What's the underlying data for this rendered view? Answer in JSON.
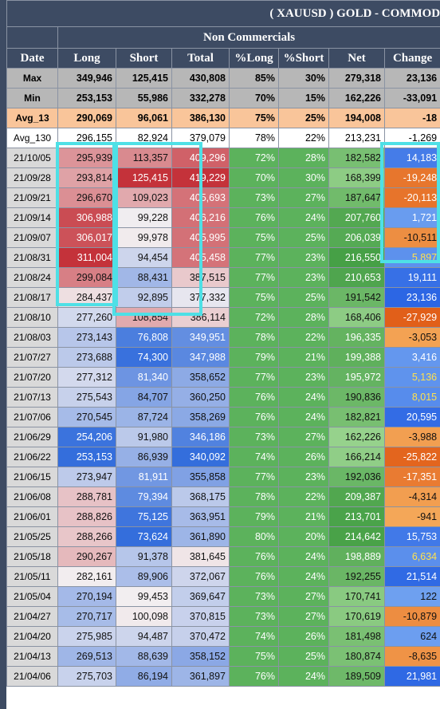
{
  "title": "( XAUUSD ) GOLD - COMMOD",
  "table": {
    "group_header": "Non Commercials",
    "columns": [
      "Date",
      "Long",
      "Short",
      "Total",
      "%Long",
      "%Short",
      "Net",
      "Change"
    ],
    "rows": [
      [
        "Max",
        "349,946",
        "125,415",
        "430,808",
        "85%",
        "30%",
        "279,318",
        "23,136"
      ],
      [
        "Min",
        "253,153",
        "55,986",
        "332,278",
        "70%",
        "15%",
        "162,226",
        "-33,091"
      ],
      [
        "Avg_13",
        "290,069",
        "96,061",
        "386,130",
        "75%",
        "25%",
        "194,008",
        "-18"
      ],
      [
        "Avg_130",
        "296,155",
        "82,924",
        "379,079",
        "78%",
        "22%",
        "213,231",
        "-1,269"
      ],
      [
        "21/10/05",
        "295,939",
        "113,357",
        "409,296",
        "72%",
        "28%",
        "182,582",
        "14,183"
      ],
      [
        "21/09/28",
        "293,814",
        "125,415",
        "419,229",
        "70%",
        "30%",
        "168,399",
        "-19,248"
      ],
      [
        "21/09/21",
        "296,670",
        "109,023",
        "405,693",
        "73%",
        "27%",
        "187,647",
        "-20,113"
      ],
      [
        "21/09/14",
        "306,988",
        "99,228",
        "406,216",
        "76%",
        "24%",
        "207,760",
        "1,721"
      ],
      [
        "21/09/07",
        "306,017",
        "99,978",
        "405,995",
        "75%",
        "25%",
        "206,039",
        "-10,511"
      ],
      [
        "21/08/31",
        "311,004",
        "94,454",
        "405,458",
        "77%",
        "23%",
        "216,550",
        "5,897"
      ],
      [
        "21/08/24",
        "299,084",
        "88,431",
        "387,515",
        "77%",
        "23%",
        "210,653",
        "19,111"
      ],
      [
        "21/08/17",
        "284,437",
        "92,895",
        "377,332",
        "75%",
        "25%",
        "191,542",
        "23,136"
      ],
      [
        "21/08/10",
        "277,260",
        "108,854",
        "386,114",
        "72%",
        "28%",
        "168,406",
        "-27,929"
      ],
      [
        "21/08/03",
        "273,143",
        "76,808",
        "349,951",
        "78%",
        "22%",
        "196,335",
        "-3,053"
      ],
      [
        "21/07/27",
        "273,688",
        "74,300",
        "347,988",
        "79%",
        "21%",
        "199,388",
        "3,416"
      ],
      [
        "21/07/20",
        "277,312",
        "81,340",
        "358,652",
        "77%",
        "23%",
        "195,972",
        "5,136"
      ],
      [
        "21/07/13",
        "275,543",
        "84,707",
        "360,250",
        "76%",
        "24%",
        "190,836",
        "8,015"
      ],
      [
        "21/07/06",
        "270,545",
        "87,724",
        "358,269",
        "76%",
        "24%",
        "182,821",
        "20,595"
      ],
      [
        "21/06/29",
        "254,206",
        "91,980",
        "346,186",
        "73%",
        "27%",
        "162,226",
        "-3,988"
      ],
      [
        "21/06/22",
        "253,153",
        "86,939",
        "340,092",
        "74%",
        "26%",
        "166,214",
        "-25,822"
      ],
      [
        "21/06/15",
        "273,947",
        "81,911",
        "355,858",
        "77%",
        "23%",
        "192,036",
        "-17,351"
      ],
      [
        "21/06/08",
        "288,781",
        "79,394",
        "368,175",
        "78%",
        "22%",
        "209,387",
        "-4,314"
      ],
      [
        "21/06/01",
        "288,826",
        "75,125",
        "363,951",
        "79%",
        "21%",
        "213,701",
        "-941"
      ],
      [
        "21/05/25",
        "288,266",
        "73,624",
        "361,890",
        "80%",
        "20%",
        "214,642",
        "15,753"
      ],
      [
        "21/05/18",
        "290,267",
        "91,378",
        "381,645",
        "76%",
        "24%",
        "198,889",
        "6,634"
      ],
      [
        "21/05/11",
        "282,161",
        "89,906",
        "372,067",
        "76%",
        "24%",
        "192,255",
        "21,514"
      ],
      [
        "21/05/04",
        "270,194",
        "99,453",
        "369,647",
        "73%",
        "27%",
        "170,741",
        "122"
      ],
      [
        "21/04/27",
        "270,717",
        "100,098",
        "370,815",
        "73%",
        "27%",
        "170,619",
        "-10,879"
      ],
      [
        "21/04/20",
        "275,985",
        "94,487",
        "370,472",
        "74%",
        "26%",
        "181,498",
        "624"
      ],
      [
        "21/04/13",
        "269,513",
        "88,639",
        "358,152",
        "75%",
        "25%",
        "180,874",
        "-8,635"
      ],
      [
        "21/04/06",
        "275,703",
        "86,194",
        "361,897",
        "76%",
        "24%",
        "189,509",
        "21,981"
      ]
    ]
  }
}
